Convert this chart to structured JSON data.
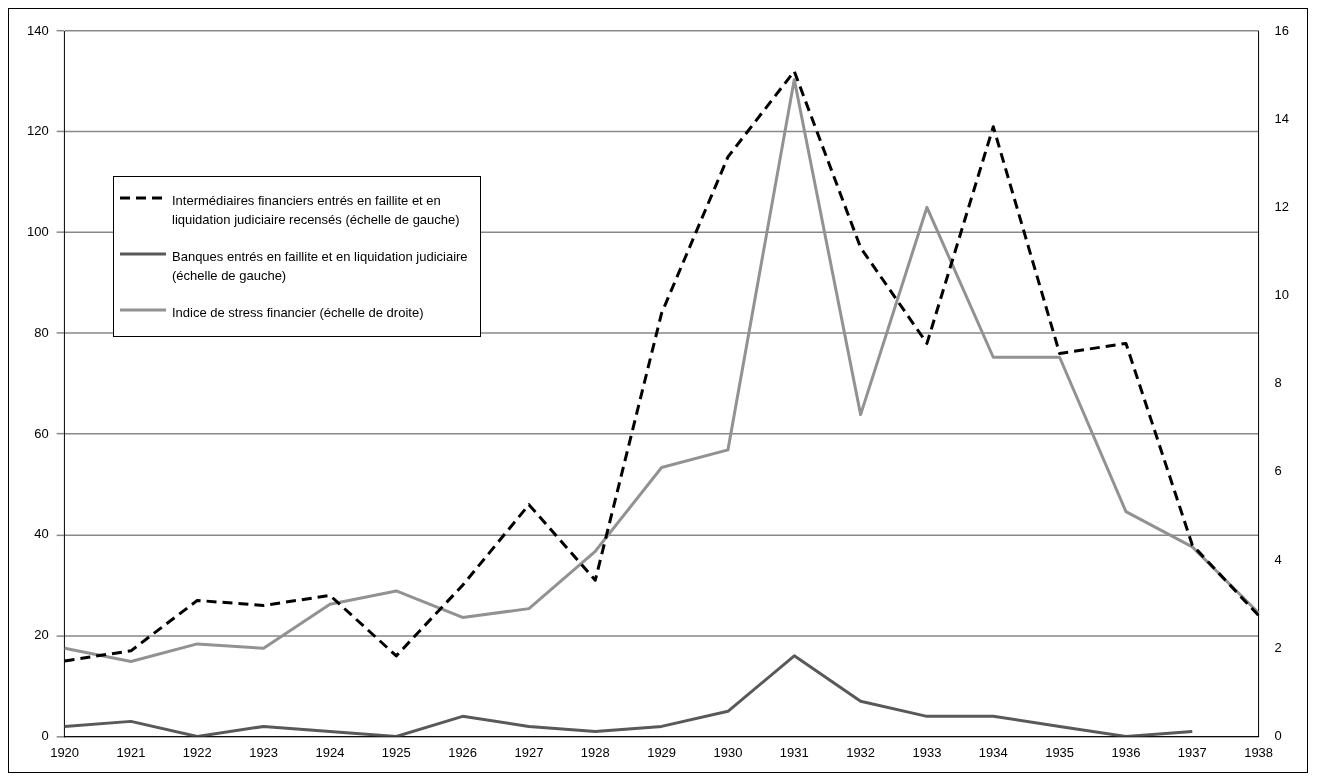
{
  "chart_data": {
    "type": "line",
    "categories": [
      "1920",
      "1921",
      "1922",
      "1923",
      "1924",
      "1925",
      "1926",
      "1927",
      "1928",
      "1929",
      "1930",
      "1931",
      "1932",
      "1933",
      "1934",
      "1935",
      "1936",
      "1937",
      "1938"
    ],
    "series": [
      {
        "name": "Intermédiaires financiers entrés en faillite et en liquidation judiciaire recensés (échelle de gauche)",
        "color": "#000000",
        "line_style": "dashed",
        "values": [
          15,
          17,
          27,
          26,
          28,
          16,
          30,
          46,
          31,
          84,
          115,
          132,
          97,
          78,
          121,
          76,
          78,
          38,
          24
        ]
      },
      {
        "name": "Banques entrés en faillite et en liquidation judiciaire (échelle de gauche)",
        "color": "#595959",
        "values": [
          2,
          3,
          0,
          2,
          1,
          0,
          4,
          2,
          1,
          2,
          5,
          16,
          7,
          4,
          4,
          2,
          0,
          1,
          null
        ]
      },
      {
        "name": "Indice de stress financier (échelle de droite)",
        "color": "#929292",
        "axis": "y2",
        "values": [
          2.0,
          1.7,
          2.1,
          2.0,
          3.0,
          3.3,
          2.7,
          2.9,
          4.2,
          6.1,
          6.5,
          14.9,
          7.3,
          12.0,
          8.6,
          8.6,
          5.1,
          4.3,
          2.8
        ]
      }
    ],
    "ylim": [
      0,
      140
    ],
    "yticks": [
      0,
      20,
      40,
      60,
      80,
      100,
      120,
      140
    ],
    "y2lim": [
      0,
      16
    ],
    "y2ticks": [
      0,
      2,
      4,
      6,
      8,
      10,
      12,
      14,
      16
    ],
    "grid": "y",
    "legend": "top left",
    "marker": "none"
  }
}
